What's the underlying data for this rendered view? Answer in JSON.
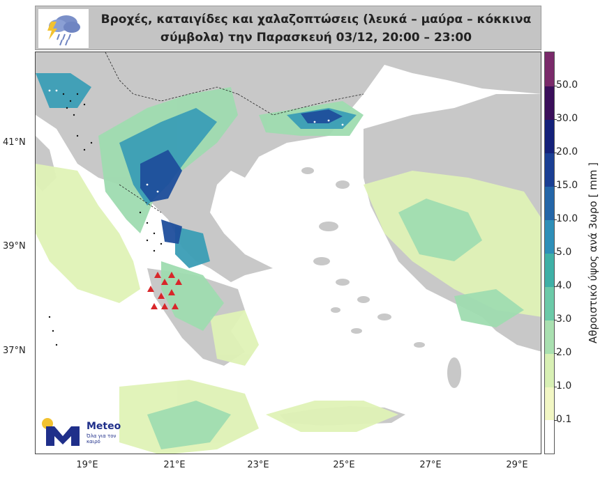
{
  "header": {
    "title_line1": "Βροχές, καταιγίδες και χαλαζοπτώσεις (λευκά – μαύρα – κόκκινα",
    "title_line2": "σύμβολα) την Παρασκευή 03/12, 20:00 – 23:00",
    "icon": "cloud-storm-rain-icon"
  },
  "map": {
    "x_ticks": [
      "19°E",
      "21°E",
      "23°E",
      "25°E",
      "27°E",
      "29°E"
    ],
    "y_ticks": [
      "41°N",
      "39°N",
      "37°N"
    ],
    "sea_color": "#ffffff",
    "land_color": "#c8c8c8"
  },
  "colorbar": {
    "label": "Αθροιστικό ύψος ανά 3ωρο [ mm ]",
    "ticks": [
      "50.0",
      "30.0",
      "20.0",
      "15.0",
      "10.0",
      "5.0",
      "4.0",
      "3.0",
      "2.0",
      "1.0",
      "0.1"
    ],
    "colors": [
      "#ffffff",
      "#f2f7c4",
      "#d8f0b4",
      "#a9e0b0",
      "#6ccaa8",
      "#3fb0a6",
      "#2e8fb8",
      "#2466a8",
      "#1a3f94",
      "#14217a",
      "#3a0f5a",
      "#7a2a6a"
    ]
  },
  "logo": {
    "brand": "Meteo",
    "tagline": "Όλα για τον καιρό"
  }
}
